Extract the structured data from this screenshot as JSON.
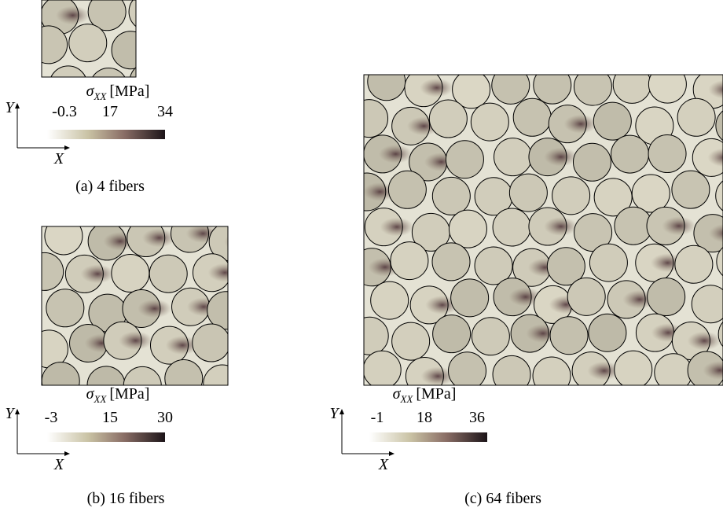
{
  "panels": [
    {
      "caption": "(a) 4 fibers",
      "colorbar": {
        "symbol": "σ",
        "subscript": "XX",
        "unit": "[MPa]",
        "ticks": [
          "-0.3",
          "17",
          "34"
        ]
      },
      "axes": {
        "x": "X",
        "y": "Y"
      }
    },
    {
      "caption": "(b) 16 fibers",
      "colorbar": {
        "symbol": "σ",
        "subscript": "XX",
        "unit": "[MPa]",
        "ticks": [
          "-3",
          "15",
          "30"
        ]
      },
      "axes": {
        "x": "X",
        "y": "Y"
      }
    },
    {
      "caption": "(c) 64 fibers",
      "colorbar": {
        "symbol": "σ",
        "subscript": "XX",
        "unit": "[MPa]",
        "ticks": [
          "-1",
          "18",
          "36"
        ]
      },
      "axes": {
        "x": "X",
        "y": "Y"
      }
    }
  ]
}
